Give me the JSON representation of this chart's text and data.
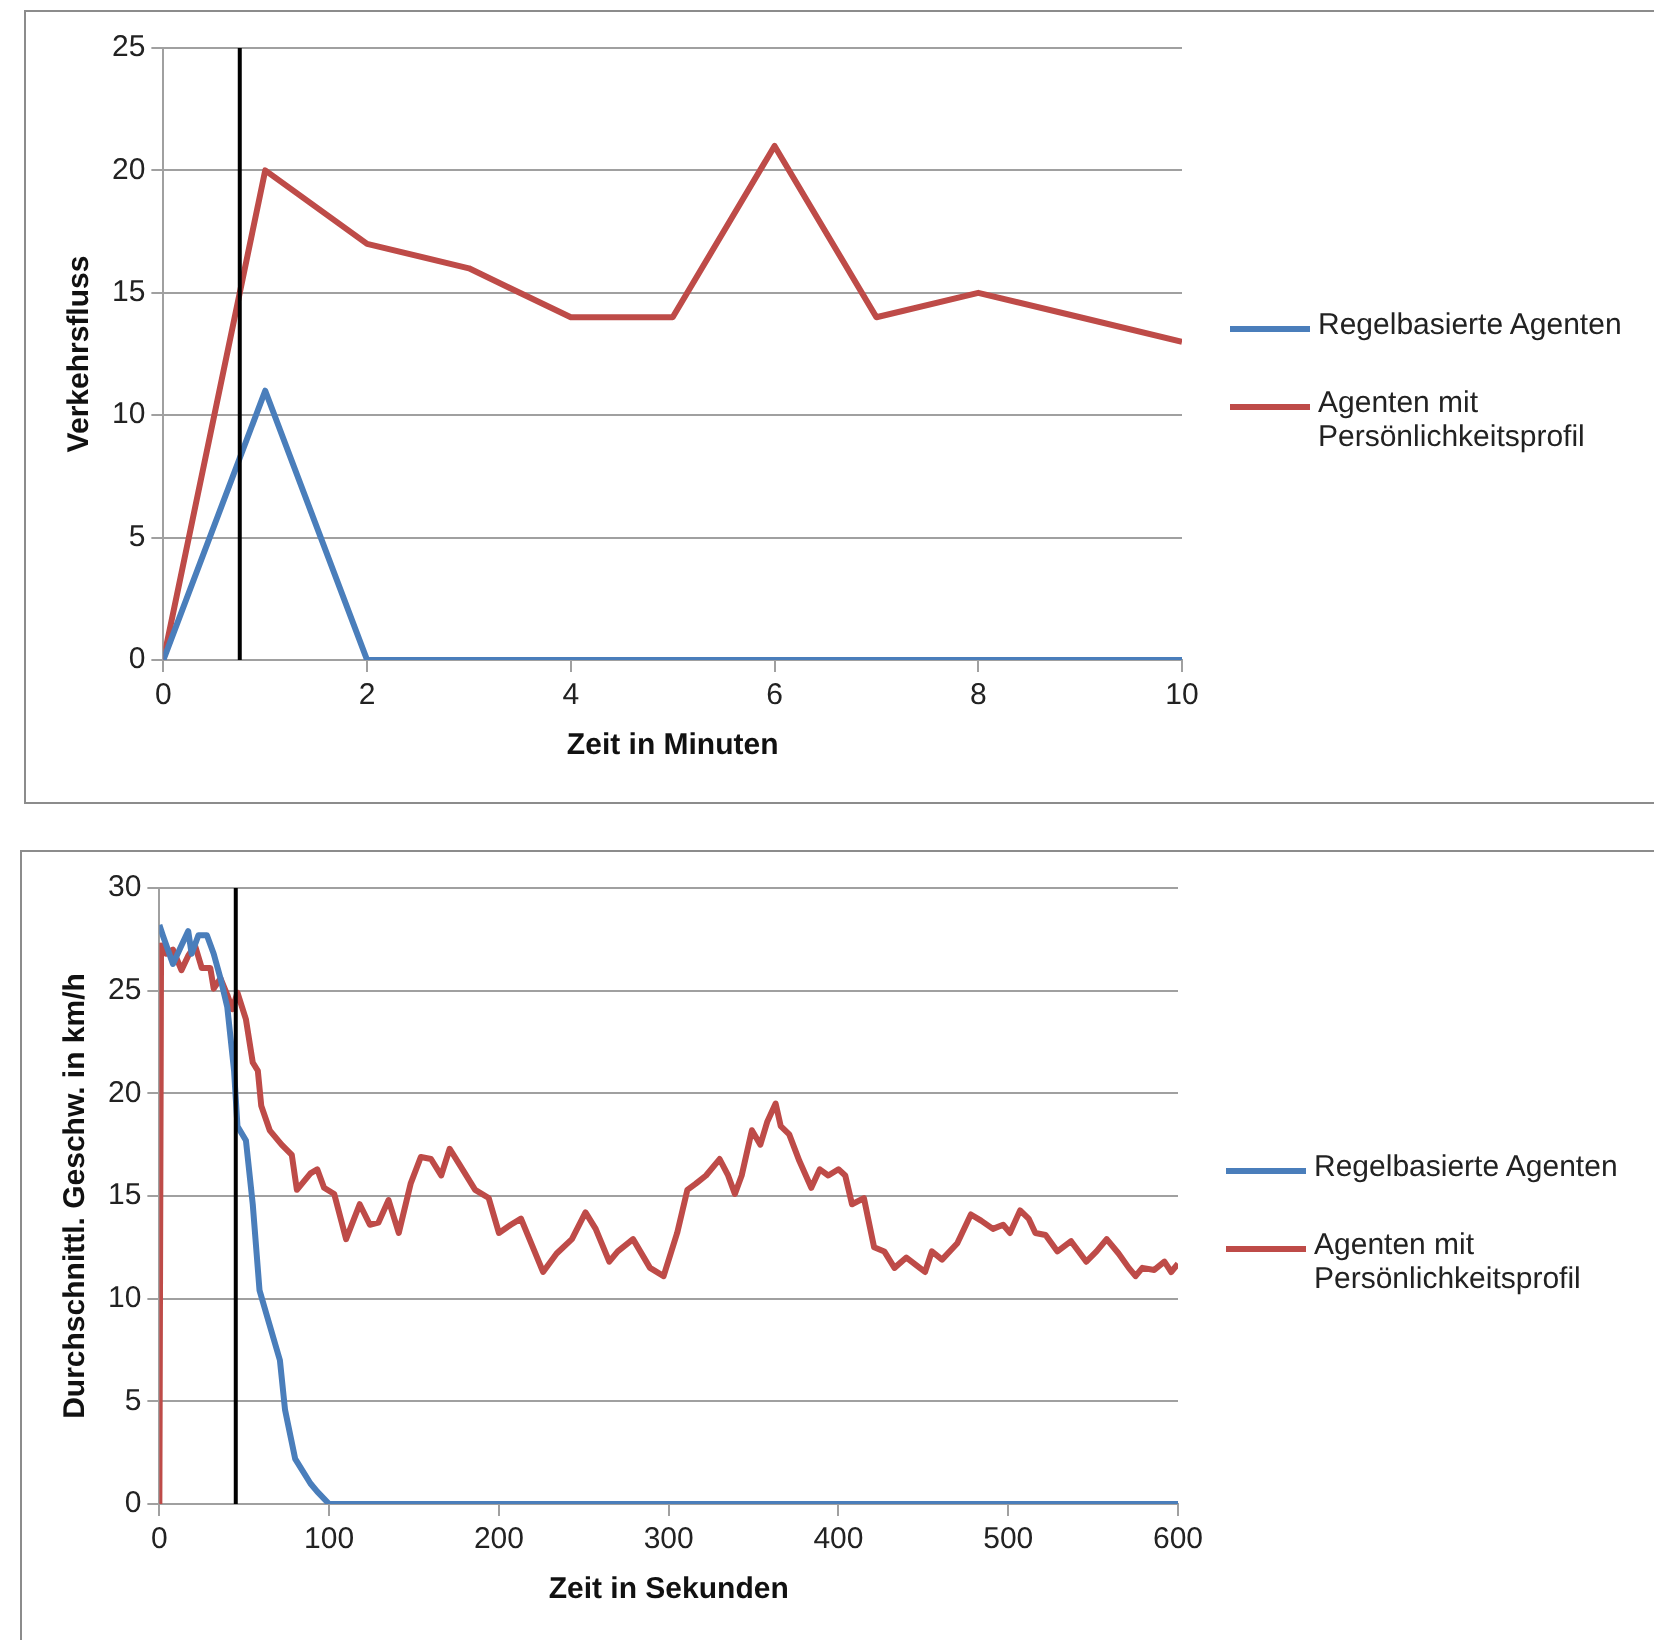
{
  "chart_data": [
    {
      "type": "line",
      "xlabel": "Zeit in Minuten",
      "ylabel": "Verkehrsfluss",
      "xlim": [
        0,
        10
      ],
      "xticks": [
        0,
        2,
        4,
        6,
        8,
        10
      ],
      "ylim": [
        0,
        25
      ],
      "yticks": [
        0,
        5,
        10,
        15,
        20,
        25
      ],
      "grid": "y",
      "legend": "right",
      "marker": "none",
      "line_style": "solid",
      "ref_lines": [
        {
          "axis": "x",
          "value": 0.75,
          "color": "#000000"
        }
      ],
      "x": [
        0,
        1,
        2,
        3,
        4,
        5,
        6,
        7,
        8,
        9,
        10
      ],
      "series": [
        {
          "name": "Regelbasierte Agenten",
          "color": "#4a7ebb",
          "values": [
            0,
            11,
            0,
            0,
            0,
            0,
            0,
            0,
            0,
            0,
            0
          ]
        },
        {
          "name": "Agenten mit Persönlichkeitsprofil",
          "color": "#be4b48",
          "values": [
            0,
            20,
            17,
            16,
            14,
            14,
            21,
            14,
            15,
            14,
            13
          ]
        }
      ]
    },
    {
      "type": "line",
      "xlabel": "Zeit in Sekunden",
      "ylabel": "Durchschnittl. Geschw. in km/h",
      "xlim": [
        0,
        600
      ],
      "xticks": [
        0,
        100,
        200,
        300,
        400,
        500,
        600
      ],
      "ylim": [
        0,
        30
      ],
      "yticks": [
        0,
        5,
        10,
        15,
        20,
        25,
        30
      ],
      "grid": "y",
      "legend": "right",
      "marker": "none",
      "line_style": "solid",
      "ref_lines": [
        {
          "axis": "x",
          "value": 45,
          "color": "#000000"
        }
      ],
      "series": [
        {
          "name": "Regelbasierte Agenten",
          "color": "#4a7ebb",
          "x": [
            0,
            2,
            8,
            13,
            17,
            19,
            23,
            28,
            32,
            36,
            40,
            44,
            46,
            51,
            55,
            59,
            65,
            71,
            74,
            80,
            89,
            93,
            100,
            600
          ],
          "values": [
            28.2,
            27.7,
            26.3,
            27.2,
            27.9,
            26.8,
            27.7,
            27.7,
            26.8,
            25.6,
            24.2,
            21.1,
            18.4,
            17.7,
            14.6,
            10.4,
            8.7,
            7,
            4.6,
            2.2,
            1,
            0.6,
            0,
            0
          ]
        },
        {
          "name": "Agenten mit Persönlichkeitsprofil",
          "color": "#be4b48",
          "x": [
            0,
            1,
            4,
            8,
            13,
            17,
            21,
            25,
            30,
            32,
            36,
            40,
            43,
            46,
            51,
            55,
            58,
            60,
            65,
            72,
            78,
            81,
            89,
            93,
            97,
            103,
            110,
            118,
            124,
            129,
            135,
            141,
            148,
            154,
            160,
            166,
            171,
            177,
            186,
            194,
            200,
            207,
            213,
            221,
            226,
            234,
            243,
            251,
            257,
            265,
            270,
            279,
            289,
            297,
            305,
            311,
            316,
            322,
            330,
            335,
            339,
            343,
            349,
            354,
            358,
            363,
            366,
            371,
            377,
            384,
            389,
            394,
            400,
            404,
            408,
            415,
            421,
            427,
            433,
            440,
            451,
            455,
            461,
            470,
            478,
            484,
            491,
            497,
            501,
            507,
            512,
            516,
            522,
            529,
            537,
            546,
            552,
            558,
            565,
            571,
            575,
            579,
            586,
            592,
            596,
            600
          ],
          "values": [
            0,
            27.2,
            26.8,
            27,
            26,
            26.7,
            27.2,
            26.1,
            26.1,
            25.1,
            25.6,
            24.8,
            24.1,
            24.9,
            23.6,
            21.5,
            21.1,
            19.4,
            18.2,
            17.5,
            17,
            15.3,
            16.1,
            16.3,
            15.4,
            15.1,
            12.9,
            14.6,
            13.6,
            13.7,
            14.8,
            13.2,
            15.6,
            16.9,
            16.8,
            16,
            17.3,
            16.5,
            15.3,
            14.9,
            13.2,
            13.6,
            13.9,
            12.3,
            11.3,
            12.2,
            12.9,
            14.2,
            13.4,
            11.8,
            12.3,
            12.9,
            11.5,
            11.1,
            13.2,
            15.3,
            15.6,
            16,
            16.8,
            16,
            15.1,
            16,
            18.2,
            17.5,
            18.6,
            19.5,
            18.4,
            18,
            16.7,
            15.4,
            16.3,
            16,
            16.3,
            16,
            14.6,
            14.9,
            12.5,
            12.3,
            11.5,
            12,
            11.3,
            12.3,
            11.9,
            12.7,
            14.1,
            13.8,
            13.4,
            13.6,
            13.2,
            14.3,
            13.9,
            13.2,
            13.1,
            12.3,
            12.8,
            11.8,
            12.3,
            12.9,
            12.2,
            11.5,
            11.1,
            11.5,
            11.4,
            11.8,
            11.3,
            11.7
          ]
        }
      ]
    }
  ]
}
